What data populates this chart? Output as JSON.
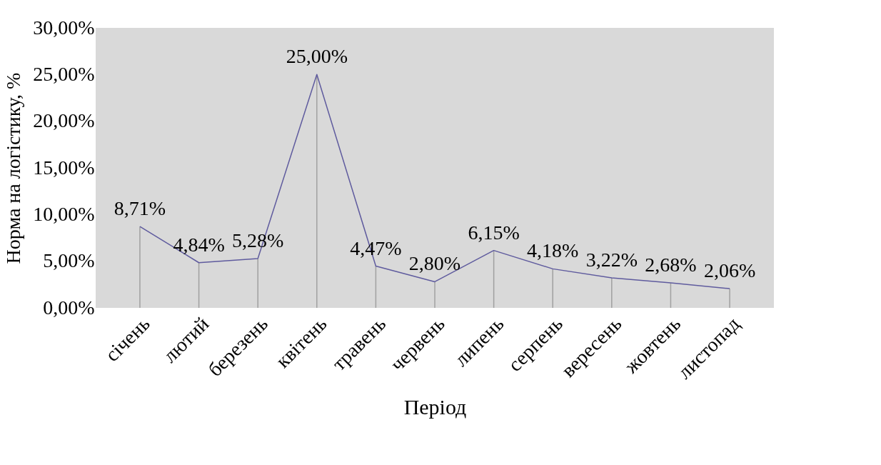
{
  "chart_data": {
    "type": "line",
    "xlabel": "Період",
    "ylabel": "Норма на логістику, %",
    "categories": [
      "січень",
      "лютий",
      "березень",
      "квітень",
      "травень",
      "червень",
      "липень",
      "серпень",
      "вересень",
      "жовтень",
      "листопад"
    ],
    "series": [
      {
        "color": "#5f5b9e",
        "values": [
          8.71,
          4.84,
          5.28,
          25.0,
          4.47,
          2.8,
          6.15,
          4.18,
          3.22,
          2.68,
          2.06
        ],
        "value_labels": [
          "8,71%",
          "4,84%",
          "5,28%",
          "25,00%",
          "4,47%",
          "2,80%",
          "6,15%",
          "4,18%",
          "3,22%",
          "2,68%",
          "2,06%"
        ]
      },
      {
        "type": "bar",
        "color": "#a0a0a0",
        "values": [
          8.71,
          4.84,
          5.28,
          25.0,
          4.47,
          2.8,
          6.15,
          4.18,
          3.22,
          2.68,
          2.06
        ]
      }
    ],
    "ylim": [
      0,
      30
    ],
    "yticks": [
      {
        "value": 0,
        "label": "0,00%"
      },
      {
        "value": 5,
        "label": "5,00%"
      },
      {
        "value": 10,
        "label": "10,00%"
      },
      {
        "value": 15,
        "label": "15,00%"
      },
      {
        "value": 20,
        "label": "20,00%"
      },
      {
        "value": 25,
        "label": "25,00%"
      },
      {
        "value": 30,
        "label": "30,00%"
      }
    ],
    "grid": false,
    "marker": "none",
    "line_style": "solid"
  }
}
